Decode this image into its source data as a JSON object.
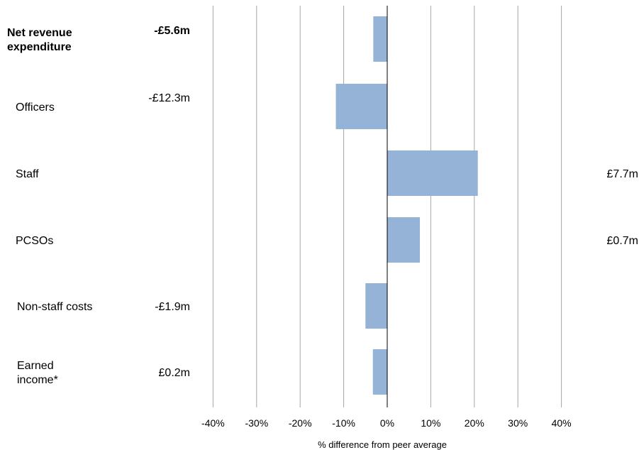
{
  "chart_data": {
    "type": "bar",
    "orientation": "horizontal",
    "xlabel": "% difference from peer average",
    "xlim": [
      -40,
      40
    ],
    "xticks": [
      -40,
      -30,
      -20,
      -10,
      0,
      10,
      20,
      30,
      40
    ],
    "xtick_labels": [
      "-40%",
      "-30%",
      "-20%",
      "-10%",
      "0%",
      "10%",
      "20%",
      "30%",
      "40%"
    ],
    "grid": true,
    "bar_color": "#95B3D7",
    "categories": [
      {
        "label": [
          "Net revenue",
          "expenditure"
        ],
        "value": -3.2,
        "amount": "-£5.6m",
        "bold": true
      },
      {
        "label": [
          "Officers"
        ],
        "value": -11.8,
        "amount": "-£12.3m",
        "bold": false
      },
      {
        "label": [
          "Staff"
        ],
        "value": 20.8,
        "amount": "£7.7m",
        "bold": false
      },
      {
        "label": [
          "PCSOs"
        ],
        "value": 7.5,
        "amount": "£0.7m",
        "bold": false
      },
      {
        "label": [
          "Non-staff costs"
        ],
        "value": -5.0,
        "amount": "-£1.9m",
        "bold": false
      },
      {
        "label": [
          "Earned",
          "income*"
        ],
        "value": -3.3,
        "amount": "£0.2m",
        "bold": false
      }
    ]
  }
}
